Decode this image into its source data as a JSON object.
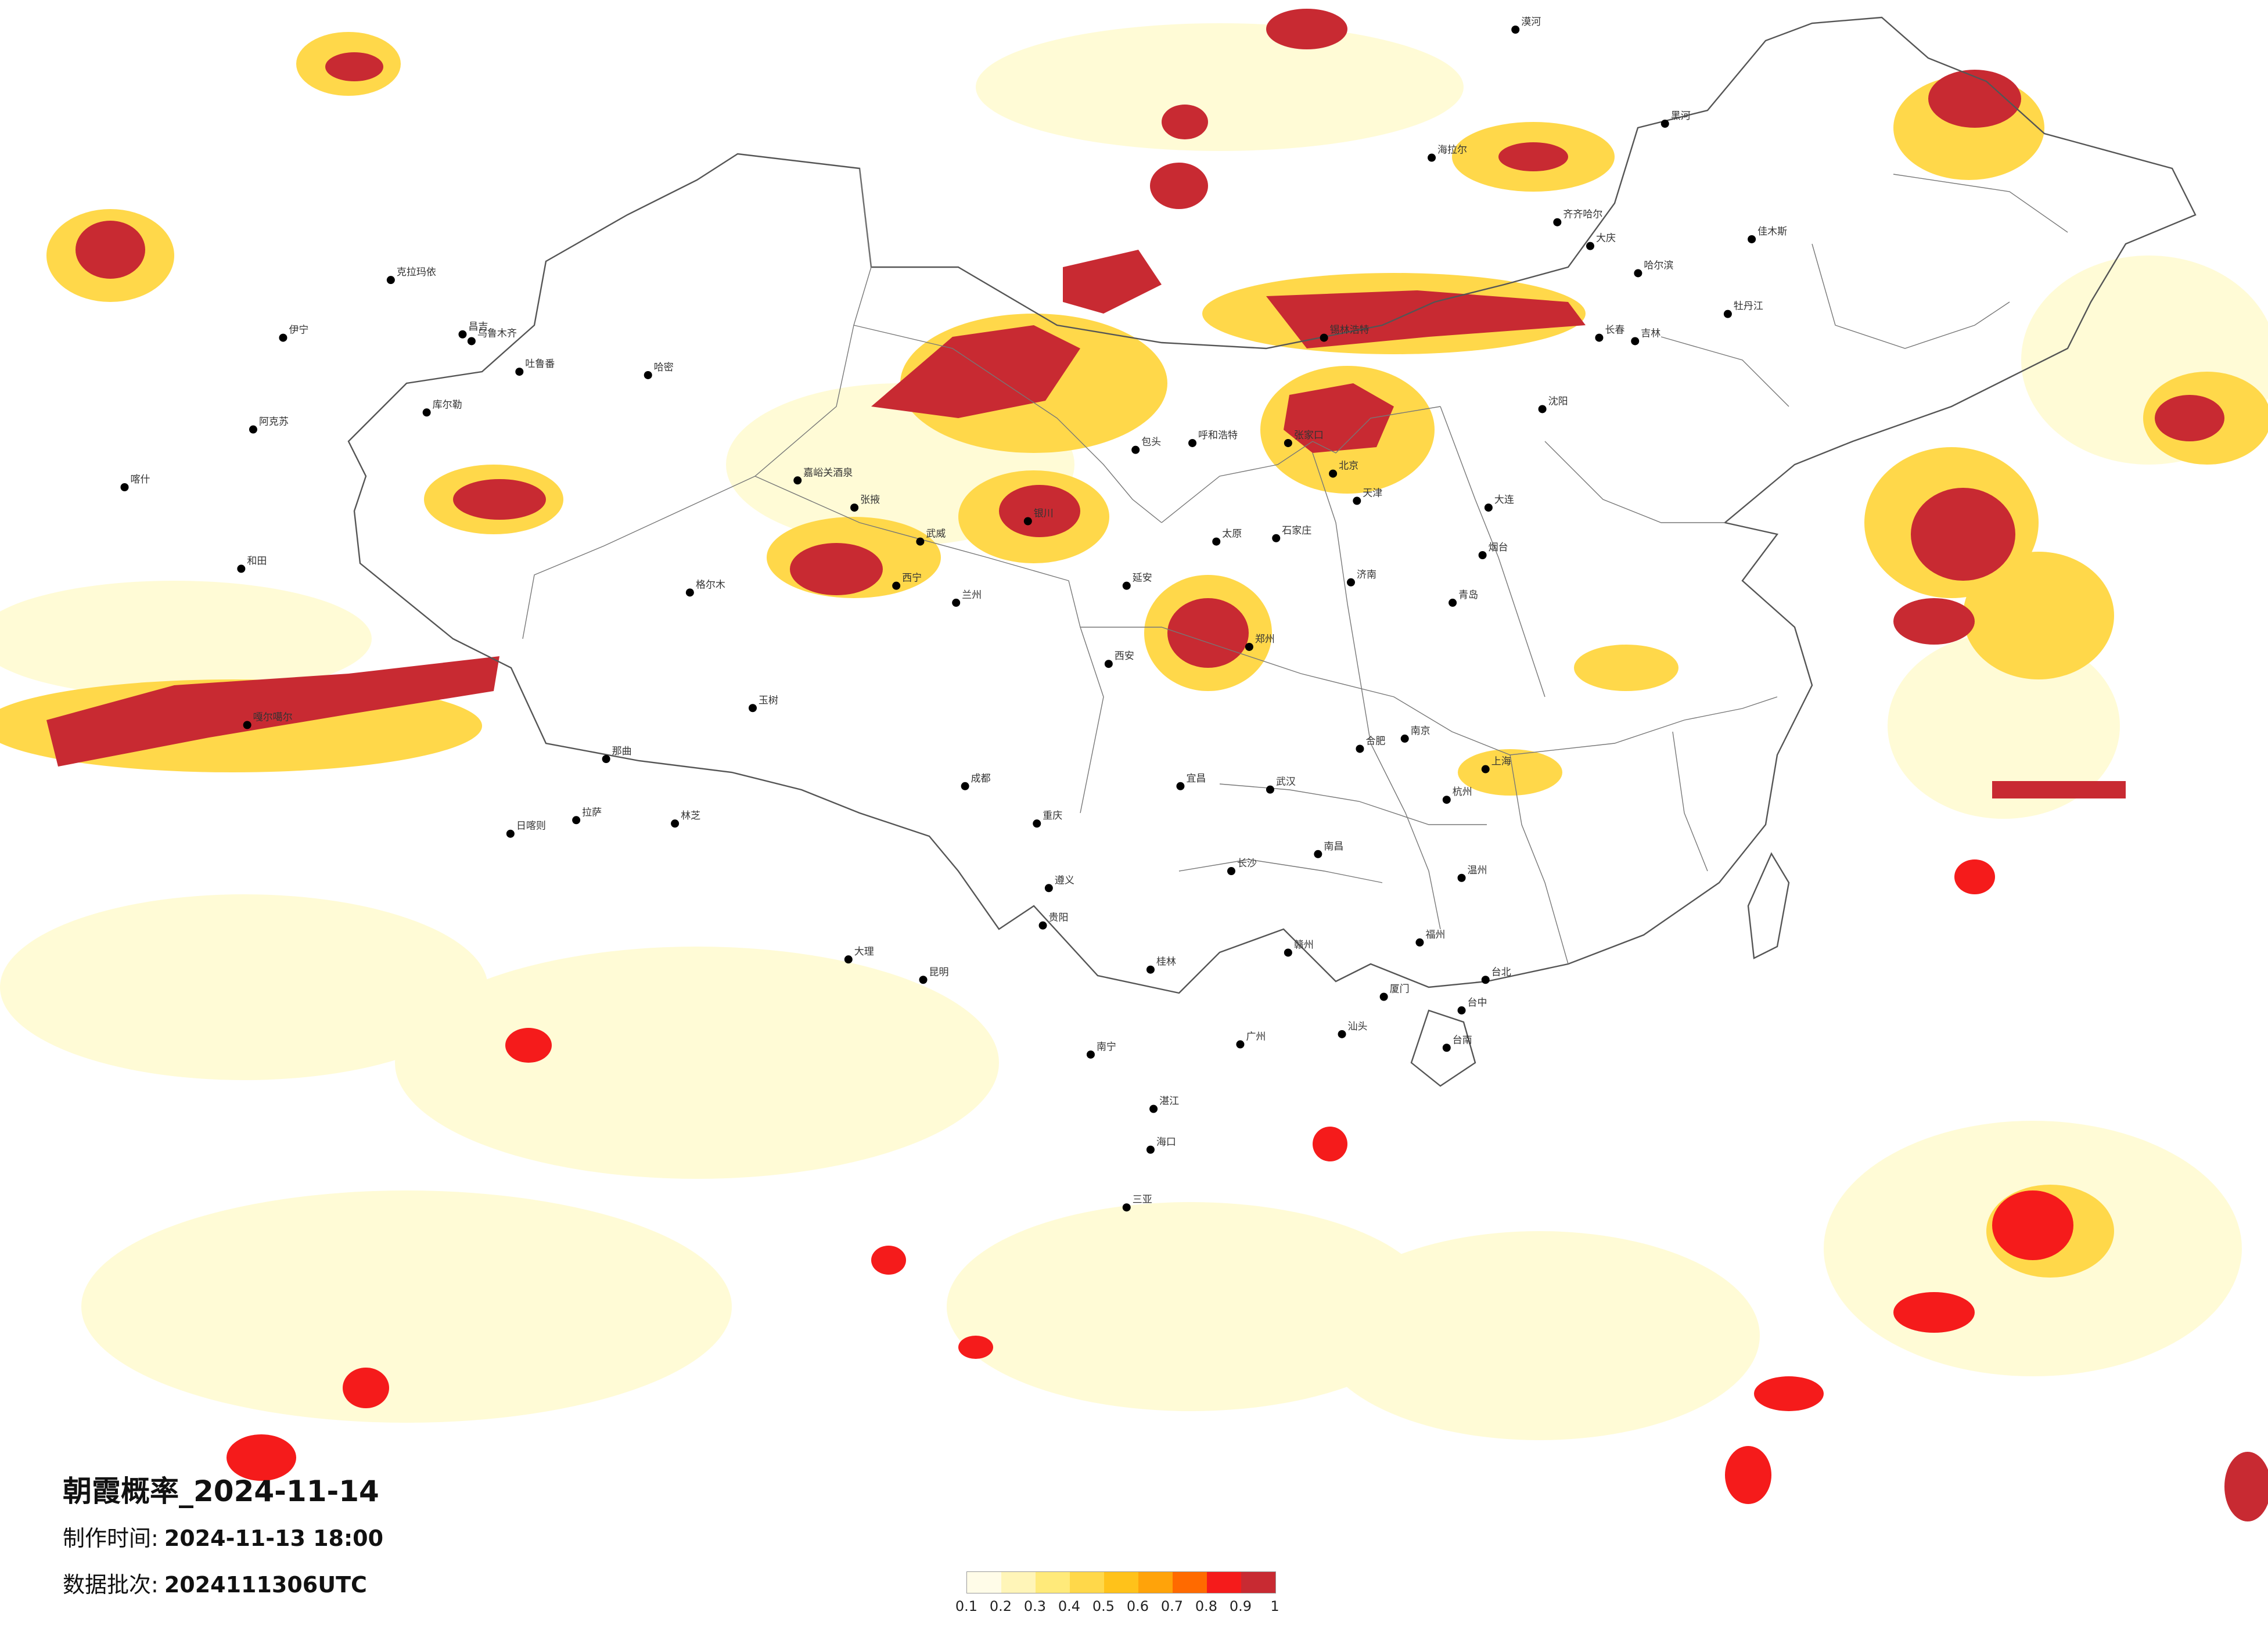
{
  "header": {
    "title": "朝霞概率_2024-11-14",
    "made_label": "制作时间:",
    "made_value": "2024-11-13 18:00",
    "batch_label": "数据批次:",
    "batch_value": "2024111306UTC"
  },
  "legend": {
    "colors": [
      "#fffce8",
      "#fff5b8",
      "#ffea7a",
      "#ffd84a",
      "#ffc21a",
      "#ffa30a",
      "#ff6a00",
      "#f51b1b",
      "#c82a32"
    ],
    "labels": [
      "0.1",
      "0.2",
      "0.3",
      "0.4",
      "0.5",
      "0.6",
      "0.7",
      "0.8",
      "0.9",
      "1"
    ]
  },
  "cities": [
    {
      "name": "伊宁",
      "lng": 81.3,
      "lat": 43.9
    },
    {
      "name": "克拉玛依",
      "lng": 84.9,
      "lat": 45.6
    },
    {
      "name": "昌吉",
      "lng": 87.3,
      "lat": 44.0
    },
    {
      "name": "乌鲁木齐",
      "lng": 87.6,
      "lat": 43.8
    },
    {
      "name": "吐鲁番",
      "lng": 89.2,
      "lat": 42.9
    },
    {
      "name": "哈密",
      "lng": 93.5,
      "lat": 42.8
    },
    {
      "name": "库尔勒",
      "lng": 86.1,
      "lat": 41.7
    },
    {
      "name": "阿克苏",
      "lng": 80.3,
      "lat": 41.2
    },
    {
      "name": "喀什",
      "lng": 76.0,
      "lat": 39.5
    },
    {
      "name": "和田",
      "lng": 79.9,
      "lat": 37.1
    },
    {
      "name": "嘎尔噶尔",
      "lng": 80.1,
      "lat": 32.5
    },
    {
      "name": "日喀则",
      "lng": 88.9,
      "lat": 29.3
    },
    {
      "name": "拉萨",
      "lng": 91.1,
      "lat": 29.7
    },
    {
      "name": "林芝",
      "lng": 94.4,
      "lat": 29.6
    },
    {
      "name": "那曲",
      "lng": 92.1,
      "lat": 31.5
    },
    {
      "name": "玉树",
      "lng": 97.0,
      "lat": 33.0
    },
    {
      "name": "格尔木",
      "lng": 94.9,
      "lat": 36.4
    },
    {
      "name": "西宁",
      "lng": 101.8,
      "lat": 36.6
    },
    {
      "name": "嘉峪关酒泉",
      "lng": 98.5,
      "lat": 39.7
    },
    {
      "name": "张掖",
      "lng": 100.4,
      "lat": 38.9
    },
    {
      "name": "武威",
      "lng": 102.6,
      "lat": 37.9
    },
    {
      "name": "兰州",
      "lng": 103.8,
      "lat": 36.1
    },
    {
      "name": "银川",
      "lng": 106.2,
      "lat": 38.5
    },
    {
      "name": "包头",
      "lng": 109.8,
      "lat": 40.6
    },
    {
      "name": "呼和浩特",
      "lng": 111.7,
      "lat": 40.8
    },
    {
      "name": "海拉尔",
      "lng": 119.7,
      "lat": 49.2
    },
    {
      "name": "齐齐哈尔",
      "lng": 123.9,
      "lat": 47.3
    },
    {
      "name": "大庆",
      "lng": 125.0,
      "lat": 46.6
    },
    {
      "name": "哈尔滨",
      "lng": 126.6,
      "lat": 45.8
    },
    {
      "name": "长春",
      "lng": 125.3,
      "lat": 43.9
    },
    {
      "name": "吉林",
      "lng": 126.5,
      "lat": 43.8
    },
    {
      "name": "沈阳",
      "lng": 123.4,
      "lat": 41.8
    },
    {
      "name": "大连",
      "lng": 121.6,
      "lat": 38.9
    },
    {
      "name": "北京",
      "lng": 116.4,
      "lat": 39.9
    },
    {
      "name": "天津",
      "lng": 117.2,
      "lat": 39.1
    },
    {
      "name": "石家庄",
      "lng": 114.5,
      "lat": 38.0
    },
    {
      "name": "太原",
      "lng": 112.5,
      "lat": 37.9
    },
    {
      "name": "济南",
      "lng": 117.0,
      "lat": 36.7
    },
    {
      "name": "青岛",
      "lng": 120.4,
      "lat": 36.1
    },
    {
      "name": "郑州",
      "lng": 113.6,
      "lat": 34.8
    },
    {
      "name": "西安",
      "lng": 108.9,
      "lat": 34.3
    },
    {
      "name": "成都",
      "lng": 104.1,
      "lat": 30.7
    },
    {
      "name": "重庆",
      "lng": 106.5,
      "lat": 29.6
    },
    {
      "name": "武汉",
      "lng": 114.3,
      "lat": 30.6
    },
    {
      "name": "南京",
      "lng": 118.8,
      "lat": 32.1
    },
    {
      "name": "合肥",
      "lng": 117.3,
      "lat": 31.8
    },
    {
      "name": "上海",
      "lng": 121.5,
      "lat": 31.2
    },
    {
      "name": "杭州",
      "lng": 120.2,
      "lat": 30.3
    },
    {
      "name": "南昌",
      "lng": 115.9,
      "lat": 28.7
    },
    {
      "name": "长沙",
      "lng": 113.0,
      "lat": 28.2
    },
    {
      "name": "贵阳",
      "lng": 106.7,
      "lat": 26.6
    },
    {
      "name": "昆明",
      "lng": 102.7,
      "lat": 25.0
    },
    {
      "name": "南宁",
      "lng": 108.3,
      "lat": 22.8
    },
    {
      "name": "广州",
      "lng": 113.3,
      "lat": 23.1
    },
    {
      "name": "福州",
      "lng": 119.3,
      "lat": 26.1
    },
    {
      "name": "厦门",
      "lng": 118.1,
      "lat": 24.5
    },
    {
      "name": "台北",
      "lng": 121.5,
      "lat": 25.0
    },
    {
      "name": "台中",
      "lng": 120.7,
      "lat": 24.1
    },
    {
      "name": "台南",
      "lng": 120.2,
      "lat": 23.0
    },
    {
      "name": "海口",
      "lng": 110.3,
      "lat": 20.0
    },
    {
      "name": "三亚",
      "lng": 109.5,
      "lat": 18.3
    },
    {
      "name": "大理",
      "lng": 100.2,
      "lat": 25.6
    },
    {
      "name": "桂林",
      "lng": 110.3,
      "lat": 25.3
    },
    {
      "name": "赣州",
      "lng": 114.9,
      "lat": 25.8
    },
    {
      "name": "温州",
      "lng": 120.7,
      "lat": 28.0
    },
    {
      "name": "烟台",
      "lng": 121.4,
      "lat": 37.5
    },
    {
      "name": "佳木斯",
      "lng": 130.4,
      "lat": 46.8
    },
    {
      "name": "牡丹江",
      "lng": 129.6,
      "lat": 44.6
    },
    {
      "name": "黑河",
      "lng": 127.5,
      "lat": 50.2
    },
    {
      "name": "漠河",
      "lng": 122.5,
      "lat": 52.97
    },
    {
      "name": "锡林浩特",
      "lng": 116.1,
      "lat": 43.9
    },
    {
      "name": "张家口",
      "lng": 114.9,
      "lat": 40.8
    },
    {
      "name": "延安",
      "lng": 109.5,
      "lat": 36.6
    },
    {
      "name": "宜昌",
      "lng": 111.3,
      "lat": 30.7
    },
    {
      "name": "遵义",
      "lng": 106.9,
      "lat": 27.7
    },
    {
      "name": "汕头",
      "lng": 116.7,
      "lat": 23.4
    },
    {
      "name": "湛江",
      "lng": 110.4,
      "lat": 21.2
    }
  ]
}
